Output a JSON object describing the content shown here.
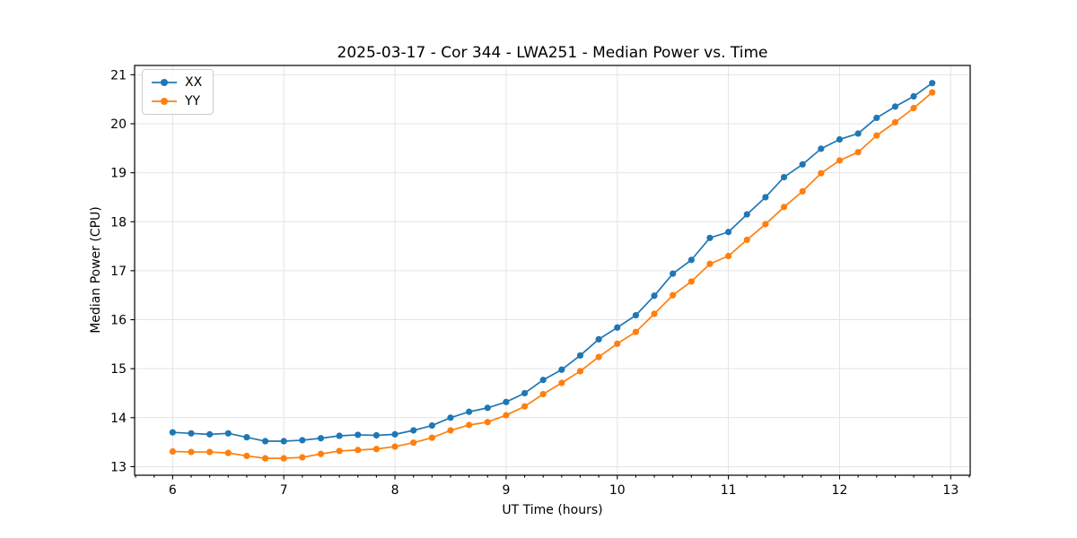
{
  "figure": {
    "title": "2025-03-17 - Cor 344 - LWA251 - Median Power vs. Time"
  },
  "colors": {
    "series_xx": "#1f77b4",
    "series_yy": "#ff7f0e",
    "grid": "#e4e4e4",
    "spine": "#000000",
    "tick_label": "#000000",
    "background": "#ffffff"
  },
  "chart_data": {
    "type": "line",
    "title": "2025-03-17 - Cor 344 - LWA251 - Median Power vs. Time",
    "xlabel": "UT Time (hours)",
    "ylabel": "Median Power (CPU)",
    "grid": true,
    "legend_position": "upper-left",
    "xlim": [
      5.658,
      13.175
    ],
    "ylim": [
      12.825,
      21.19
    ],
    "x_ticks": [
      6,
      7,
      8,
      9,
      10,
      11,
      12,
      13
    ],
    "y_ticks": [
      13,
      14,
      15,
      16,
      17,
      18,
      19,
      20,
      21
    ],
    "x_minor_tick_step": 0.166667,
    "x": [
      6.0,
      6.1667,
      6.3333,
      6.5,
      6.6667,
      6.8333,
      7.0,
      7.1667,
      7.3333,
      7.5,
      7.6667,
      7.8333,
      8.0,
      8.1667,
      8.3333,
      8.5,
      8.6667,
      8.8333,
      9.0,
      9.1667,
      9.3333,
      9.5,
      9.6667,
      9.8333,
      10.0,
      10.1667,
      10.3333,
      10.5,
      10.6667,
      10.8333,
      11.0,
      11.1667,
      11.3333,
      11.5,
      11.6667,
      11.8333,
      12.0,
      12.1667,
      12.3333,
      12.5,
      12.6667,
      12.8333
    ],
    "series": [
      {
        "name": "XX",
        "color": "#1f77b4",
        "values": [
          13.7,
          13.68,
          13.66,
          13.68,
          13.6,
          13.52,
          13.52,
          13.54,
          13.58,
          13.63,
          13.65,
          13.64,
          13.66,
          13.74,
          13.84,
          14.0,
          14.12,
          14.2,
          14.32,
          14.5,
          14.77,
          14.98,
          15.27,
          15.6,
          15.84,
          16.09,
          16.49,
          16.94,
          17.22,
          17.67,
          17.79,
          18.15,
          18.5,
          18.91,
          19.17,
          19.49,
          19.68,
          19.8,
          20.12,
          20.35,
          20.56,
          20.83
        ]
      },
      {
        "name": "YY",
        "color": "#ff7f0e",
        "values": [
          13.31,
          13.3,
          13.3,
          13.28,
          13.22,
          13.17,
          13.17,
          13.19,
          13.26,
          13.32,
          13.34,
          13.36,
          13.41,
          13.49,
          13.59,
          13.74,
          13.85,
          13.91,
          14.05,
          14.23,
          14.48,
          14.71,
          14.95,
          15.24,
          15.51,
          15.75,
          16.12,
          16.5,
          16.78,
          17.14,
          17.3,
          17.63,
          17.95,
          18.3,
          18.62,
          18.99,
          19.25,
          19.42,
          19.76,
          20.03,
          20.32,
          20.64
        ]
      }
    ]
  }
}
